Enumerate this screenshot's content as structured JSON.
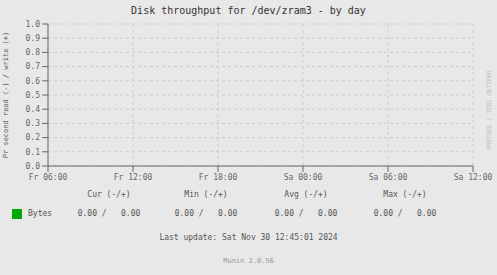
{
  "chart_data": {
    "type": "line",
    "title": "Disk throughput for /dev/zram3 - by day",
    "ylabel": "Pr second read (-) / write (+)",
    "categories": [
      "Fr 06:00",
      "Fr 12:00",
      "Fr 18:00",
      "Sa 00:00",
      "Sa 06:00",
      "Sa 12:00"
    ],
    "series": [
      {
        "name": "Bytes",
        "color": "#00aa00",
        "values": [
          null,
          null,
          null,
          null,
          null,
          null
        ]
      }
    ],
    "ylim": [
      0.0,
      1.0
    ],
    "yticks": [
      {
        "value": 0.0,
        "label": "0.0"
      },
      0.1,
      0.2,
      0.3,
      0.4,
      0.5,
      0.6,
      0.7,
      0.8,
      0.9,
      {
        "value": 1.0,
        "label": "1.0"
      }
    ],
    "grid": true,
    "annotations": [
      "Cur (-/+)",
      "Min (-/+)",
      "Avg (-/+)",
      "Max (-/+)",
      "0.00 /   0.00",
      "0.00 /   0.00",
      "0.00 /   0.00",
      "0.00 /   0.00",
      "Last update: Sat Nov 30 12:45:01 2024",
      "Munin 2.0.56",
      "RRDTOOL / TOBI OETIKER"
    ]
  }
}
